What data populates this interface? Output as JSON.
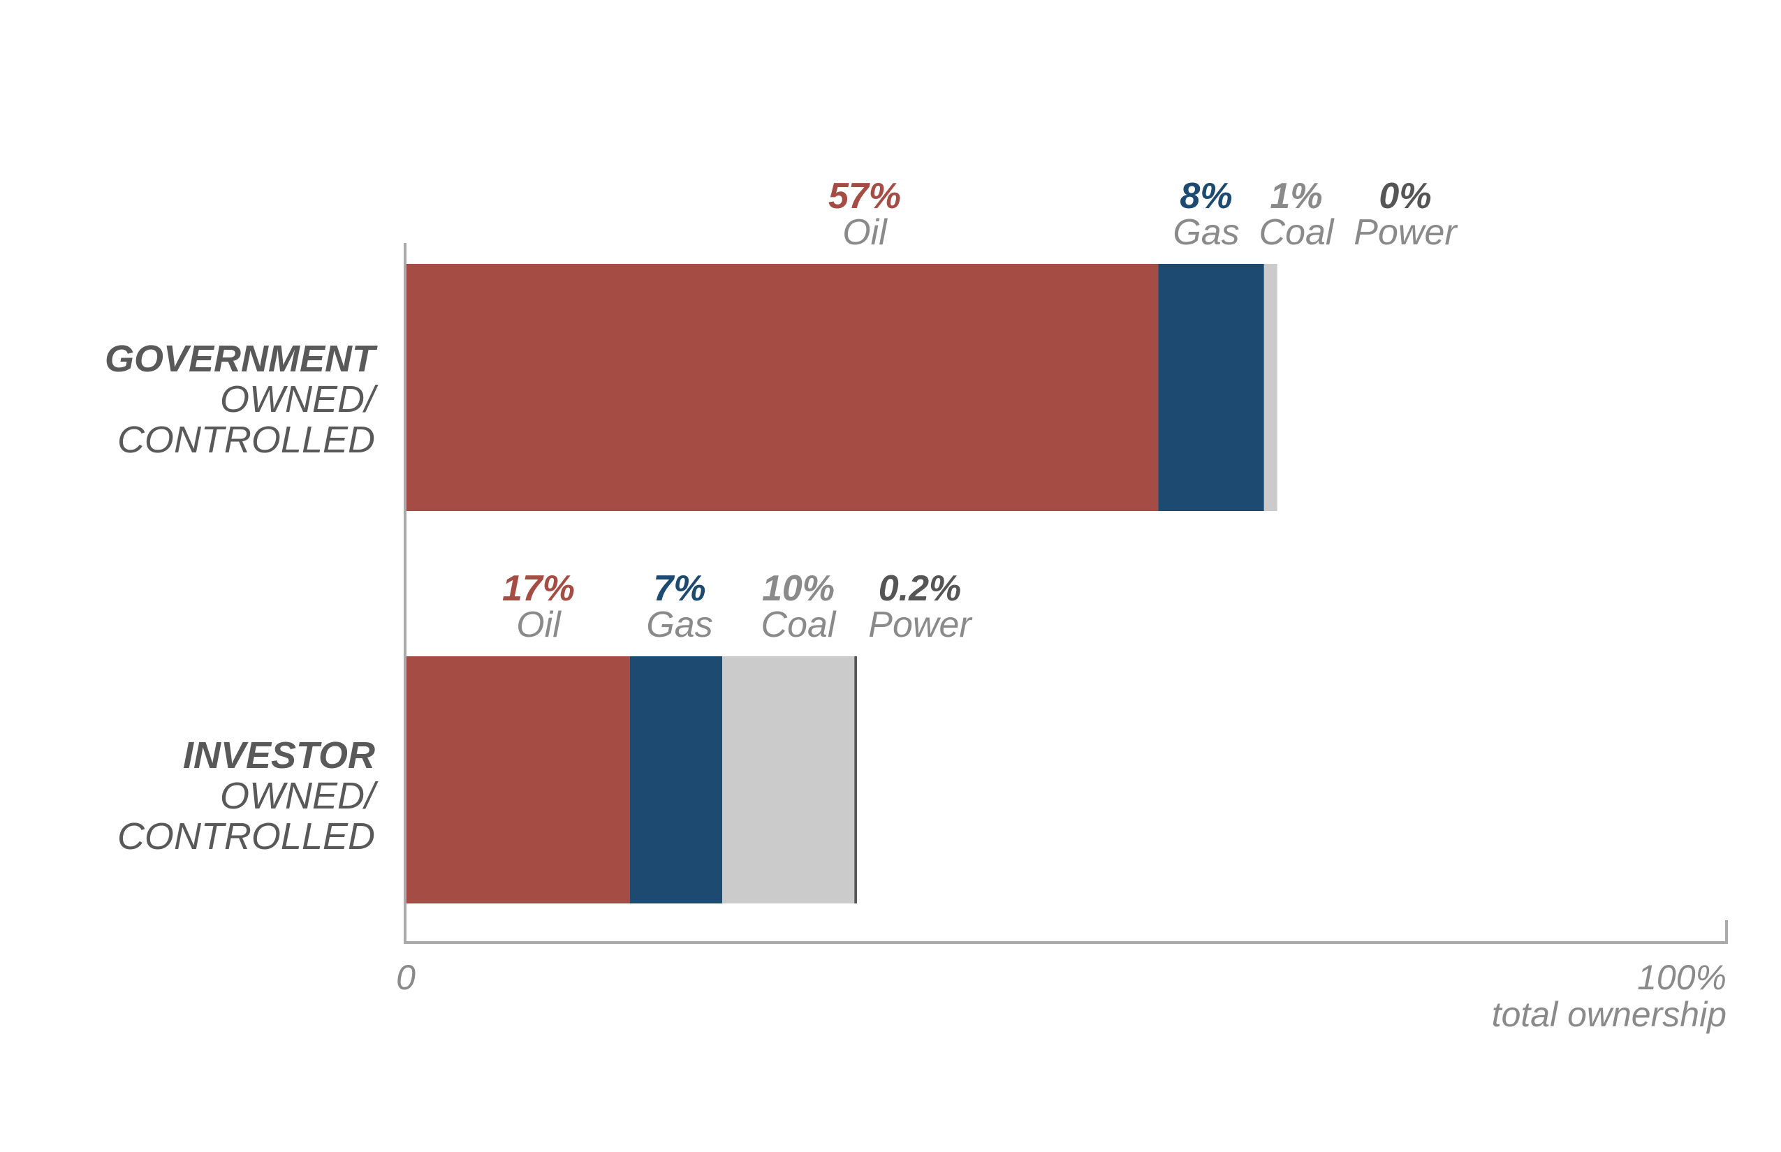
{
  "chart_data": {
    "type": "bar",
    "orientation": "horizontal",
    "stacked": true,
    "xlim": [
      0,
      100
    ],
    "x_tick_labels": [
      "0",
      "100%"
    ],
    "xlabel": "total ownership",
    "categories": [
      {
        "bold": "GOVERNMENT",
        "line2": "OWNED/",
        "line3": "CONTROLLED"
      },
      {
        "bold": "INVESTOR",
        "line2": "OWNED/",
        "line3": "CONTROLLED"
      }
    ],
    "series": [
      {
        "name": "Oil",
        "color": "#a54d45",
        "values": [
          57,
          17
        ],
        "labels": [
          "57%",
          "17%"
        ]
      },
      {
        "name": "Gas",
        "color": "#1c4a70",
        "values": [
          8,
          7
        ],
        "labels": [
          "8%",
          "7%"
        ]
      },
      {
        "name": "Coal",
        "color": "#cbcbcb",
        "values": [
          1,
          10
        ],
        "labels": [
          "1%",
          "10%"
        ]
      },
      {
        "name": "Power",
        "color": "#555555",
        "values": [
          0,
          0.2
        ],
        "labels": [
          "0%",
          "0.2%"
        ]
      }
    ],
    "label_colors": [
      "#a54d45",
      "#1c4a70",
      "#8a8a8a",
      "#555555"
    ],
    "grid": false,
    "legend": "none"
  }
}
